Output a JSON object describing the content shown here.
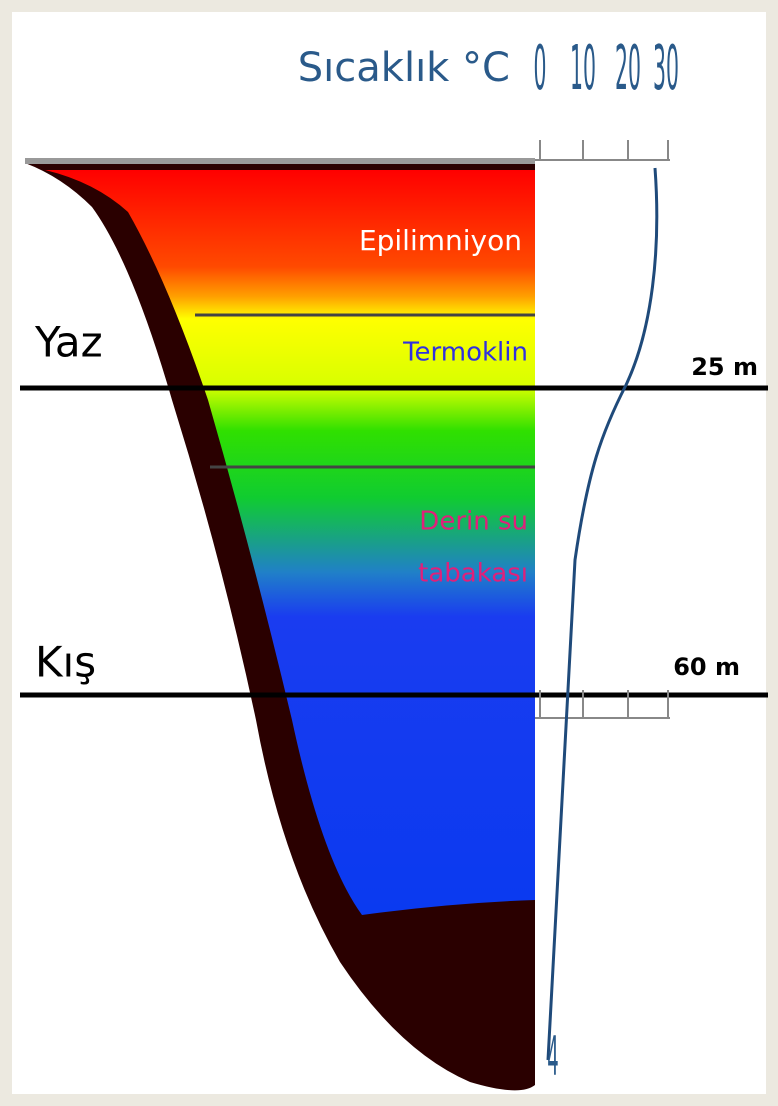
{
  "header": {
    "title": "Sıcaklık °C",
    "ticks": [
      "0",
      "10",
      "20",
      "30"
    ]
  },
  "layers": {
    "epilimnion": "Epilimniyon",
    "thermocline": "Termoklin",
    "deep": [
      "Derin su",
      "tabakası"
    ]
  },
  "seasons": {
    "summer": {
      "label": "Yaz",
      "depth": "25 m"
    },
    "winter": {
      "label": "Kış",
      "depth": "60 m"
    }
  },
  "bottom_temperature": "4"
}
